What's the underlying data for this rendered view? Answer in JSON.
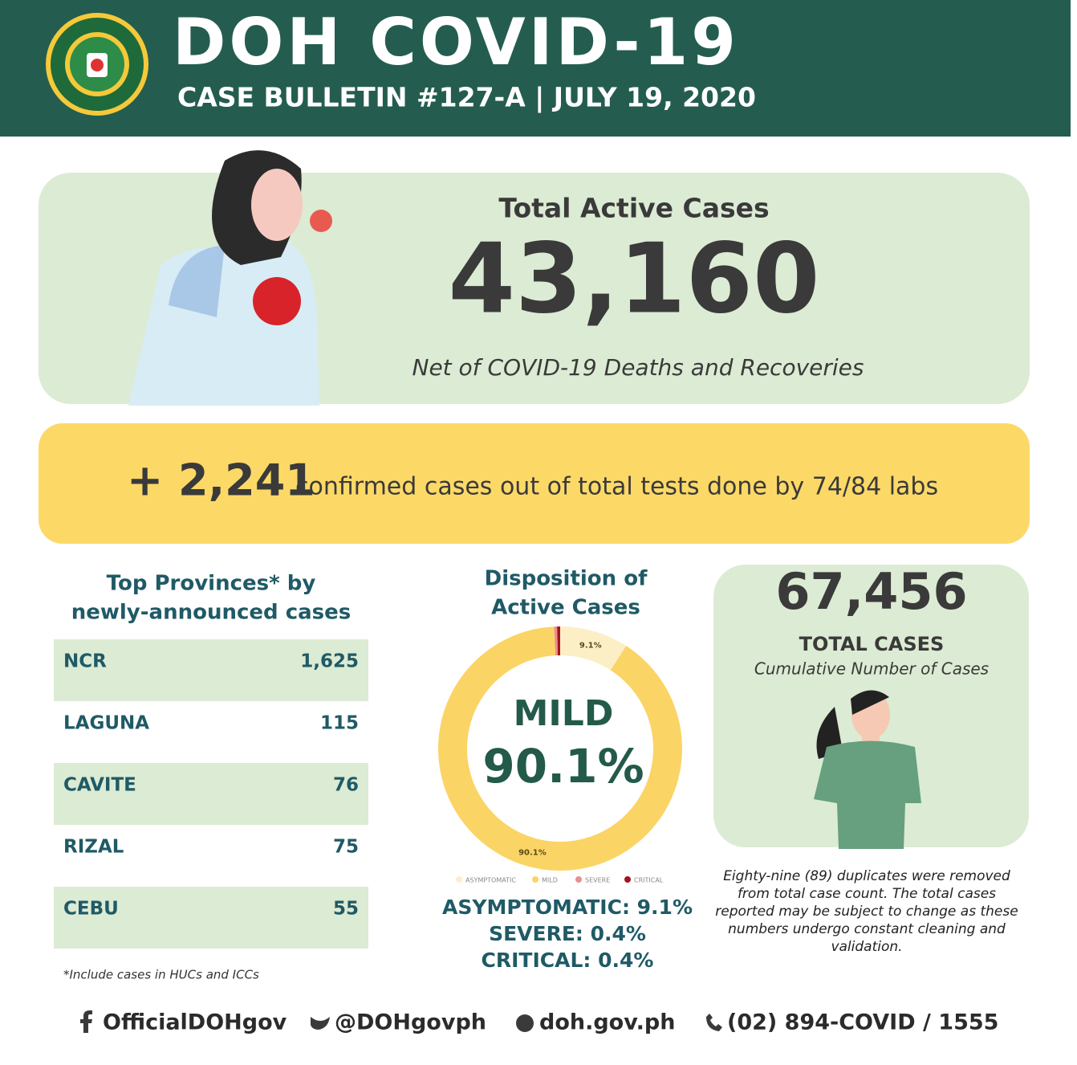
{
  "header": {
    "title": "DOH COVID-19",
    "subtitle": "CASE BULLETIN #127-A | JULY 19, 2020"
  },
  "active": {
    "label": "Total Active Cases",
    "value": "43,160",
    "note": "Net of COVID-19 Deaths and Recoveries"
  },
  "confirmed": {
    "value": "+ 2,241",
    "text": "confirmed cases out of  total tests done by 74/84 labs"
  },
  "provinces": {
    "heading": [
      "Top Provinces* by",
      "newly-announced cases"
    ],
    "rows": [
      [
        "NCR",
        "1,625"
      ],
      [
        "LAGUNA",
        "115"
      ],
      [
        "CAVITE",
        "76"
      ],
      [
        "RIZAL",
        "75"
      ],
      [
        "CEBU",
        "55"
      ]
    ],
    "footnote": "*Include cases in HUCs and ICCs"
  },
  "chart_data": {
    "type": "donut",
    "title": [
      "Disposition of",
      "Active Cases"
    ],
    "categories": [
      "ASYMPTOMATIC",
      "MILD",
      "SEVERE",
      "CRITICAL"
    ],
    "values": [
      9.1,
      90.1,
      0.4,
      0.4
    ],
    "value_labels": [
      "9.1%",
      "90.1%",
      null,
      null
    ],
    "colors": [
      "#fcefc6",
      "#fbd466",
      "#eb8f8c",
      "#a3151a"
    ],
    "center_label": "MILD",
    "center_value": "90.1%",
    "summary": [
      "ASYMPTOMATIC: 9.1%",
      "SEVERE: 0.4%",
      "CRITICAL: 0.4%"
    ]
  },
  "total": {
    "value": "67,456",
    "label": "TOTAL CASES",
    "sublabel": "Cumulative Number of Cases",
    "note": [
      "Eighty-nine (89) duplicates were removed",
      "from total case count. The total cases",
      "reported may be subject to change as these",
      "numbers undergo constant cleaning and",
      "validation."
    ]
  },
  "footer": [
    "OfficialDOHgov",
    "@DOHgovph",
    "doh.gov.ph",
    "(02) 894-COVID  /  1555"
  ]
}
